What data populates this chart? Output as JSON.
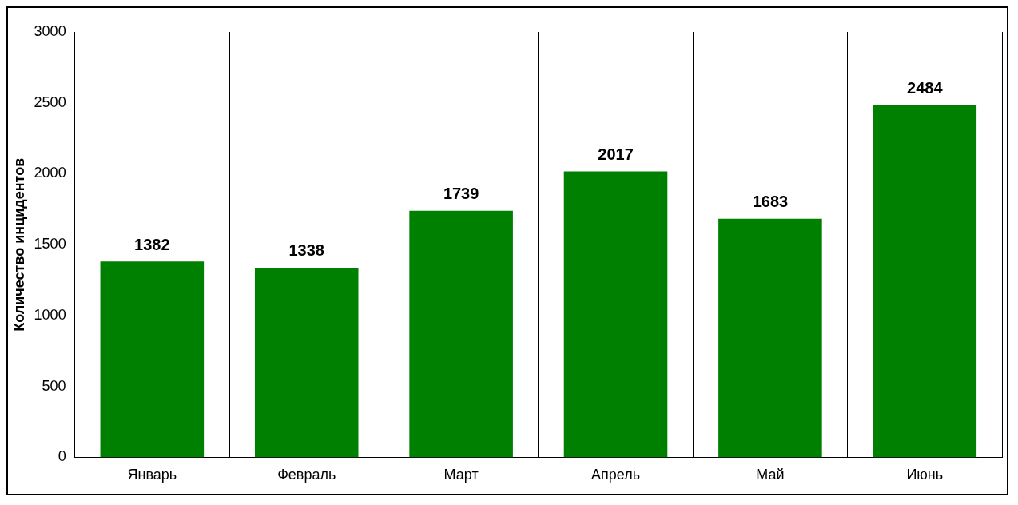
{
  "chart_data": {
    "type": "bar",
    "ylabel": "Количество инцидентов",
    "categories": [
      "Январь",
      "Февраль",
      "Март",
      "Апрель",
      "Май",
      "Июнь"
    ],
    "values": [
      1382,
      1338,
      1739,
      2017,
      1683,
      2484
    ],
    "color": "#008000",
    "ylim": [
      0,
      3000
    ],
    "yticks": [
      0,
      500,
      1000,
      1500,
      2000,
      2500,
      3000
    ],
    "grid": "x",
    "data_labels": true,
    "legend": false
  }
}
